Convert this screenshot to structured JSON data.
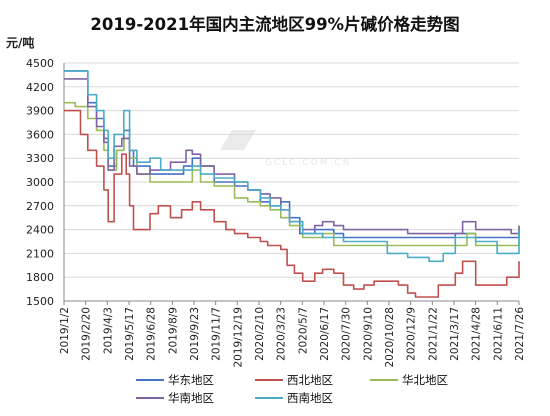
{
  "chart_data": {
    "type": "line",
    "title": "2019-2021年国内主流地区99%片碱价格走势图",
    "ylabel": "元/吨",
    "xlabel": "",
    "ylim": [
      1500,
      4500
    ],
    "yticks": [
      1500,
      1800,
      2100,
      2400,
      2700,
      3000,
      3300,
      3600,
      3900,
      4200,
      4500
    ],
    "x_tick_labels": [
      "2019/1/2",
      "2019/2/20",
      "2019/4/3",
      "2019/5/17",
      "2019/6/28",
      "2019/8/9",
      "2019/9/23",
      "2019/11/7",
      "2019/12/19",
      "2020/2/10",
      "2020/3/23",
      "2020/5/7",
      "2020/6/17",
      "2020/7/30",
      "2020/9/10",
      "2020/10/28",
      "2020/12/9",
      "2021/1/22",
      "2021/3/17",
      "2021/4/28",
      "2021/6/11",
      "2021/7/26"
    ],
    "grid": "horizontal",
    "legend_position": "bottom",
    "watermark": "GCLC.COM.CN",
    "series": [
      {
        "name": "华东地区",
        "color": "#4472c4",
        "x": [
          "2019/1/2",
          "2019/2/1",
          "2019/2/20",
          "2019/3/10",
          "2019/3/25",
          "2019/4/3",
          "2019/4/20",
          "2019/5/5",
          "2019/5/17",
          "2019/5/25",
          "2019/6/28",
          "2019/8/9",
          "2019/9/5",
          "2019/9/23",
          "2019/10/10",
          "2019/11/7",
          "2019/12/1",
          "2019/12/19",
          "2020/1/15",
          "2020/2/10",
          "2020/3/1",
          "2020/3/23",
          "2020/4/10",
          "2020/5/1",
          "2020/5/7",
          "2020/6/1",
          "2020/6/17",
          "2020/7/10",
          "2020/7/30",
          "2020/9/10",
          "2020/10/1",
          "2020/10/28",
          "2020/12/9",
          "2021/1/5",
          "2021/1/22",
          "2021/2/20",
          "2021/3/17",
          "2021/4/1",
          "2021/4/28",
          "2021/6/11",
          "2021/7/10",
          "2021/7/26"
        ],
        "y": [
          4400,
          4400,
          4000,
          3800,
          3550,
          3200,
          3400,
          3650,
          3400,
          3200,
          3100,
          3100,
          3200,
          3300,
          3200,
          3000,
          3000,
          2950,
          2900,
          2750,
          2700,
          2750,
          2550,
          2350,
          2350,
          2400,
          2400,
          2350,
          2300,
          2300,
          2300,
          2300,
          2300,
          2300,
          2300,
          2300,
          2350,
          2350,
          2300,
          2300,
          2300,
          2400
        ]
      },
      {
        "name": "西北地区",
        "color": "#c0504d",
        "x": [
          "2019/1/2",
          "2019/1/25",
          "2019/2/5",
          "2019/2/20",
          "2019/3/10",
          "2019/3/25",
          "2019/4/3",
          "2019/4/15",
          "2019/5/1",
          "2019/5/10",
          "2019/5/17",
          "2019/5/25",
          "2019/6/28",
          "2019/7/15",
          "2019/8/9",
          "2019/9/1",
          "2019/9/23",
          "2019/10/10",
          "2019/11/7",
          "2019/12/1",
          "2019/12/19",
          "2020/1/15",
          "2020/2/10",
          "2020/2/25",
          "2020/3/23",
          "2020/4/5",
          "2020/4/20",
          "2020/5/7",
          "2020/6/1",
          "2020/6/17",
          "2020/7/10",
          "2020/7/30",
          "2020/8/20",
          "2020/9/10",
          "2020/10/1",
          "2020/10/28",
          "2020/11/20",
          "2020/12/9",
          "2020/12/25",
          "2021/1/22",
          "2021/2/10",
          "2021/3/17",
          "2021/4/1",
          "2021/4/28",
          "2021/5/20",
          "2021/6/11",
          "2021/7/1",
          "2021/7/26"
        ],
        "y": [
          3900,
          3900,
          3600,
          3400,
          3200,
          2900,
          2500,
          3100,
          3350,
          3100,
          2700,
          2400,
          2600,
          2700,
          2550,
          2650,
          2750,
          2650,
          2500,
          2400,
          2350,
          2300,
          2250,
          2200,
          2150,
          1950,
          1850,
          1750,
          1850,
          1900,
          1850,
          1700,
          1650,
          1700,
          1750,
          1750,
          1700,
          1600,
          1550,
          1550,
          1700,
          1850,
          2000,
          1700,
          1700,
          1700,
          1800,
          2000
        ]
      },
      {
        "name": "华北地区",
        "color": "#9bbb59",
        "x": [
          "2019/1/2",
          "2019/1/25",
          "2019/2/20",
          "2019/3/10",
          "2019/3/25",
          "2019/4/3",
          "2019/4/20",
          "2019/5/5",
          "2019/5/17",
          "2019/6/1",
          "2019/6/28",
          "2019/8/9",
          "2019/9/23",
          "2019/10/10",
          "2019/11/7",
          "2019/12/19",
          "2020/1/15",
          "2020/2/10",
          "2020/3/1",
          "2020/3/23",
          "2020/4/10",
          "2020/5/7",
          "2020/6/1",
          "2020/6/17",
          "2020/7/10",
          "2020/7/30",
          "2020/9/10",
          "2020/10/28",
          "2020/12/9",
          "2021/1/22",
          "2021/2/20",
          "2021/3/17",
          "2021/4/10",
          "2021/4/28",
          "2021/6/11",
          "2021/7/10",
          "2021/7/26"
        ],
        "y": [
          4000,
          3950,
          3800,
          3650,
          3400,
          3150,
          3400,
          3550,
          3300,
          3100,
          3000,
          3000,
          3150,
          3000,
          2950,
          2800,
          2750,
          2700,
          2650,
          2550,
          2450,
          2300,
          2300,
          2350,
          2200,
          2200,
          2200,
          2200,
          2200,
          2200,
          2200,
          2200,
          2350,
          2200,
          2200,
          2200,
          2450
        ]
      },
      {
        "name": "华南地区",
        "color": "#8064a2",
        "x": [
          "2019/1/2",
          "2019/2/1",
          "2019/2/20",
          "2019/3/10",
          "2019/3/25",
          "2019/4/3",
          "2019/4/15",
          "2019/5/1",
          "2019/5/17",
          "2019/6/1",
          "2019/6/28",
          "2019/8/9",
          "2019/9/10",
          "2019/9/23",
          "2019/10/10",
          "2019/11/7",
          "2019/12/19",
          "2020/1/15",
          "2020/2/10",
          "2020/3/1",
          "2020/3/23",
          "2020/4/10",
          "2020/5/7",
          "2020/6/1",
          "2020/6/17",
          "2020/7/10",
          "2020/7/30",
          "2020/9/10",
          "2020/10/28",
          "2020/12/9",
          "2021/1/22",
          "2021/2/20",
          "2021/3/17",
          "2021/4/1",
          "2021/4/28",
          "2021/6/11",
          "2021/7/10",
          "2021/7/26"
        ],
        "y": [
          4300,
          4300,
          3950,
          3700,
          3500,
          3150,
          3450,
          3550,
          3200,
          3100,
          3150,
          3250,
          3400,
          3350,
          3200,
          3100,
          3000,
          2900,
          2850,
          2800,
          2650,
          2500,
          2400,
          2450,
          2500,
          2450,
          2400,
          2400,
          2400,
          2350,
          2350,
          2350,
          2350,
          2500,
          2400,
          2400,
          2350,
          2450
        ]
      },
      {
        "name": "西南地区",
        "color": "#4bacc6",
        "x": [
          "2019/1/2",
          "2019/2/1",
          "2019/2/20",
          "2019/3/10",
          "2019/3/25",
          "2019/4/3",
          "2019/4/15",
          "2019/5/1",
          "2019/5/5",
          "2019/5/17",
          "2019/6/1",
          "2019/6/28",
          "2019/7/20",
          "2019/8/9",
          "2019/9/23",
          "2019/10/10",
          "2019/11/7",
          "2019/12/19",
          "2020/1/15",
          "2020/2/10",
          "2020/3/1",
          "2020/3/23",
          "2020/4/10",
          "2020/5/7",
          "2020/6/1",
          "2020/6/17",
          "2020/7/10",
          "2020/7/30",
          "2020/9/10",
          "2020/10/28",
          "2020/12/9",
          "2021/1/22",
          "2021/2/20",
          "2021/3/17",
          "2021/4/10",
          "2021/4/28",
          "2021/6/11",
          "2021/7/10",
          "2021/7/26"
        ],
        "y": [
          4400,
          4400,
          4100,
          3900,
          3650,
          3300,
          3600,
          3600,
          3900,
          3400,
          3250,
          3300,
          3150,
          3150,
          3200,
          3100,
          3050,
          3000,
          2900,
          2800,
          2700,
          2650,
          2500,
          2350,
          2350,
          2300,
          2300,
          2250,
          2250,
          2100,
          2050,
          2000,
          2100,
          2300,
          2300,
          2250,
          2100,
          2100,
          2400
        ]
      }
    ]
  }
}
